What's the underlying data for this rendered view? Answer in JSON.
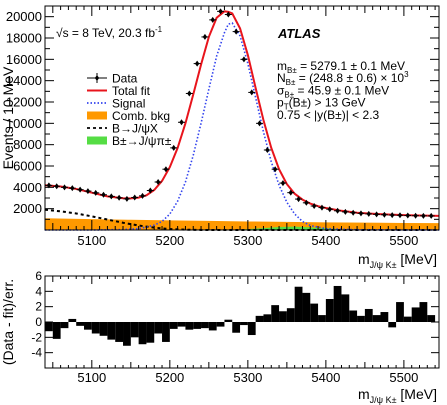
{
  "chart_data": [
    {
      "type": "line",
      "title": "",
      "xlabel": "m_{J/ψ K±} [MeV]",
      "ylabel": "Events / 10 MeV",
      "xlim": [
        5040,
        5545
      ],
      "ylim": [
        0,
        21000
      ],
      "xticks": [
        5100,
        5200,
        5300,
        5400,
        5500
      ],
      "yticks": [
        2000,
        4000,
        6000,
        8000,
        10000,
        12000,
        14000,
        16000,
        18000,
        20000
      ],
      "energy_label": "√s = 8 TeV, 20.3 fb",
      "energy_sup": "-1",
      "experiment": "ATLAS",
      "info_lines": [
        {
          "main": "m",
          "sub": "B±",
          "rest": " = 5279.1 ± 0.1 MeV"
        },
        {
          "main": "N",
          "sub": "B±",
          "rest": " = (248.8 ± 0.6) × 10",
          "sup": "3"
        },
        {
          "main": "σ",
          "sub": "B±",
          "rest": " = 45.9 ± 0.1 MeV"
        },
        {
          "main": "p",
          "sub": "T",
          "rest": "(B±) > 13 GeV"
        },
        {
          "main": "0.75 < |y(B±)| < 2.3"
        }
      ],
      "legend": [
        {
          "label": "Data",
          "style": "marker"
        },
        {
          "label": "Total fit",
          "style": "line",
          "color": "#e8141c"
        },
        {
          "label": "Signal",
          "style": "dotted",
          "color": "#3344ee"
        },
        {
          "label": "Comb. bkg",
          "style": "fill",
          "color": "#ff9900"
        },
        {
          "label": "B→J/ψX",
          "style": "dashed",
          "color": "#000000"
        },
        {
          "label": "B±→J/ψπ±",
          "style": "fill",
          "color": "#55dd44"
        }
      ],
      "colors": {
        "total_fit": "#e8141c",
        "signal": "#3344ee",
        "comb_bkg": "#ff9900",
        "partial_reco": "#000000",
        "jpsipi": "#55dd44"
      },
      "data_points": {
        "x": [
          5045,
          5055,
          5065,
          5075,
          5085,
          5095,
          5105,
          5115,
          5125,
          5135,
          5145,
          5155,
          5165,
          5175,
          5185,
          5195,
          5205,
          5215,
          5225,
          5235,
          5245,
          5255,
          5265,
          5275,
          5285,
          5295,
          5305,
          5315,
          5325,
          5335,
          5345,
          5355,
          5365,
          5375,
          5385,
          5395,
          5405,
          5415,
          5425,
          5435,
          5445,
          5455,
          5465,
          5475,
          5485,
          5495,
          5505,
          5515,
          5525,
          5535
        ],
        "y": [
          4180,
          4100,
          4000,
          3920,
          3780,
          3650,
          3480,
          3300,
          3150,
          3020,
          2920,
          3050,
          3200,
          3700,
          4500,
          5700,
          7700,
          10100,
          12800,
          15600,
          18100,
          19700,
          20500,
          20200,
          18600,
          16000,
          12900,
          10000,
          7500,
          5700,
          4400,
          3500,
          2900,
          2550,
          2250,
          2100,
          1950,
          1800,
          1700,
          1620,
          1560,
          1510,
          1470,
          1430,
          1400,
          1380,
          1360,
          1340,
          1330,
          1320
        ]
      },
      "total_fit": {
        "x": [
          5040,
          5060,
          5080,
          5100,
          5120,
          5140,
          5150,
          5160,
          5170,
          5180,
          5190,
          5200,
          5210,
          5220,
          5230,
          5240,
          5250,
          5260,
          5270,
          5275,
          5280,
          5290,
          5300,
          5310,
          5320,
          5330,
          5340,
          5350,
          5360,
          5370,
          5380,
          5390,
          5400,
          5420,
          5440,
          5460,
          5480,
          5500,
          5520,
          5545
        ],
        "y": [
          4200,
          4080,
          3850,
          3500,
          3150,
          2980,
          2960,
          3030,
          3250,
          3750,
          4600,
          5900,
          7700,
          10000,
          12700,
          15500,
          18100,
          19900,
          20500,
          20450,
          20300,
          18900,
          16400,
          13300,
          10300,
          7700,
          5700,
          4300,
          3400,
          2850,
          2480,
          2230,
          2060,
          1800,
          1620,
          1520,
          1450,
          1400,
          1360,
          1320
        ]
      },
      "signal": {
        "x": [
          5040,
          5100,
          5140,
          5160,
          5180,
          5190,
          5200,
          5210,
          5220,
          5230,
          5240,
          5250,
          5260,
          5270,
          5275,
          5280,
          5290,
          5300,
          5310,
          5320,
          5330,
          5340,
          5350,
          5360,
          5370,
          5380,
          5400,
          5440,
          5545
        ],
        "y": [
          0,
          0,
          40,
          130,
          450,
          800,
          1500,
          2700,
          4500,
          7000,
          10000,
          13200,
          16300,
          18500,
          19300,
          19400,
          18200,
          15600,
          12400,
          9200,
          6400,
          4200,
          2600,
          1500,
          800,
          420,
          120,
          20,
          0
        ]
      },
      "comb_bkg": {
        "x": [
          5040,
          5100,
          5150,
          5200,
          5250,
          5300,
          5350,
          5400,
          5450,
          5500,
          5545
        ],
        "y": [
          1100,
          1020,
          960,
          900,
          850,
          800,
          760,
          720,
          690,
          660,
          640
        ]
      },
      "partial_reco": {
        "x": [
          5040,
          5060,
          5080,
          5100,
          5120,
          5140,
          5160,
          5180,
          5200,
          5220,
          5240,
          5260,
          5545
        ],
        "y": [
          1900,
          1750,
          1550,
          1280,
          980,
          680,
          420,
          220,
          90,
          30,
          5,
          0,
          0
        ]
      },
      "jpsipi": {
        "x": [
          5280,
          5300,
          5320,
          5340,
          5360,
          5380,
          5400,
          5420,
          5440,
          5545
        ],
        "y": [
          0,
          80,
          180,
          280,
          320,
          250,
          150,
          60,
          10,
          0
        ]
      }
    },
    {
      "type": "bar",
      "title": "",
      "xlabel": "m_{J/ψ K±} [MeV]",
      "ylabel": "(Data - fit)/err.",
      "xlim": [
        5040,
        5545
      ],
      "ylim": [
        -6,
        6
      ],
      "xticks": [
        5100,
        5200,
        5300,
        5400,
        5500
      ],
      "yticks": [
        -4,
        -2,
        0,
        2,
        4,
        6
      ],
      "bin_centers": [
        5045,
        5055,
        5065,
        5075,
        5085,
        5095,
        5105,
        5115,
        5125,
        5135,
        5145,
        5155,
        5165,
        5175,
        5185,
        5195,
        5205,
        5215,
        5225,
        5235,
        5245,
        5255,
        5265,
        5275,
        5285,
        5295,
        5305,
        5315,
        5325,
        5335,
        5345,
        5355,
        5365,
        5375,
        5385,
        5395,
        5405,
        5415,
        5425,
        5435,
        5445,
        5455,
        5465,
        5475,
        5485,
        5495,
        5505,
        5515,
        5525,
        5535
      ],
      "values": [
        -1.2,
        -2.2,
        -0.8,
        0.4,
        -0.5,
        -1.0,
        -1.5,
        -1.8,
        -2.3,
        -2.6,
        -3.1,
        -2.0,
        -2.9,
        -2.7,
        -1.5,
        -2.6,
        -0.9,
        -0.6,
        -1.0,
        -0.9,
        -0.8,
        -1.1,
        -0.6,
        0.3,
        -1.4,
        -0.4,
        -1.7,
        0.8,
        1.0,
        2.2,
        1.4,
        1.8,
        4.6,
        3.8,
        2.4,
        0.9,
        3.0,
        4.7,
        3.6,
        1.5,
        0.8,
        1.7,
        0.9,
        1.3,
        -0.7,
        2.6,
        0.7,
        1.9,
        2.6,
        0.9
      ]
    }
  ]
}
